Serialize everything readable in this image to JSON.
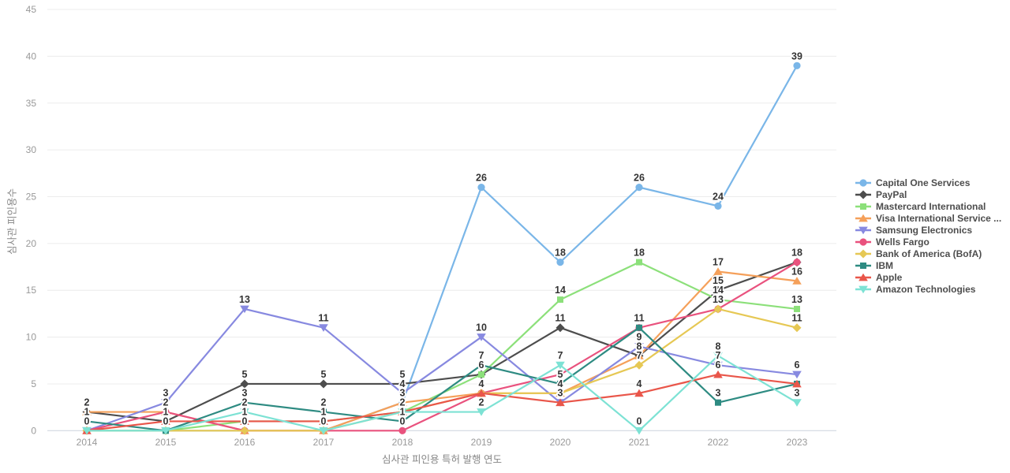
{
  "chart_data": {
    "type": "line",
    "title": "",
    "xlabel": "심사관 피인용 특허 발행 연도",
    "ylabel": "심사관 피인용수",
    "x": [
      "2014",
      "2015",
      "2016",
      "2017",
      "2018",
      "2019",
      "2020",
      "2021",
      "2022",
      "2023"
    ],
    "ylim": [
      0,
      45
    ],
    "ytick_step": 5,
    "grid": true,
    "legend_position": "right",
    "series": [
      {
        "name": "Capital One Services",
        "color": "#7ab6e8",
        "symbol": "circle",
        "values": [
          0,
          0,
          0,
          0,
          3,
          26,
          18,
          26,
          24,
          39
        ]
      },
      {
        "name": "PayPal",
        "color": "#4d4d4d",
        "symbol": "diamond",
        "values": [
          2,
          1,
          5,
          5,
          5,
          6,
          11,
          8,
          15,
          18
        ]
      },
      {
        "name": "Mastercard International",
        "color": "#8ce07a",
        "symbol": "square",
        "values": [
          0,
          0,
          1,
          1,
          2,
          6,
          14,
          18,
          14,
          13
        ]
      },
      {
        "name": "Visa International Service ...",
        "color": "#f5a05a",
        "symbol": "triangle",
        "values": [
          2,
          2,
          0,
          0,
          3,
          4,
          4,
          8,
          17,
          16
        ]
      },
      {
        "name": "Samsung Electronics",
        "color": "#8789e0",
        "symbol": "triangle-down",
        "values": [
          0,
          3,
          13,
          11,
          4,
          10,
          3,
          9,
          7,
          6
        ]
      },
      {
        "name": "Wells Fargo",
        "color": "#e9527e",
        "symbol": "circle",
        "values": [
          0,
          2,
          0,
          0,
          0,
          4,
          6,
          11,
          13,
          18
        ]
      },
      {
        "name": "Bank of America (BofA)",
        "color": "#e6c854",
        "symbol": "diamond",
        "values": [
          0,
          0,
          0,
          0,
          2,
          4,
          4,
          7,
          13,
          11
        ]
      },
      {
        "name": "IBM",
        "color": "#2e8b82",
        "symbol": "square",
        "values": [
          1,
          0,
          3,
          2,
          1,
          7,
          5,
          11,
          3,
          5
        ]
      },
      {
        "name": "Apple",
        "color": "#e9564a",
        "symbol": "triangle",
        "values": [
          0,
          1,
          1,
          1,
          2,
          4,
          3,
          4,
          6,
          5
        ]
      },
      {
        "name": "Amazon Technologies",
        "color": "#7de2d4",
        "symbol": "triangle-down",
        "values": [
          0,
          0,
          2,
          0,
          2,
          2,
          7,
          0,
          8,
          3
        ]
      }
    ],
    "hidden_labels": [
      {
        "series": "Wells Fargo",
        "x": "2020"
      },
      {
        "series": "IBM",
        "x": "2023"
      },
      {
        "series": "Apple",
        "x": "2023"
      }
    ]
  }
}
